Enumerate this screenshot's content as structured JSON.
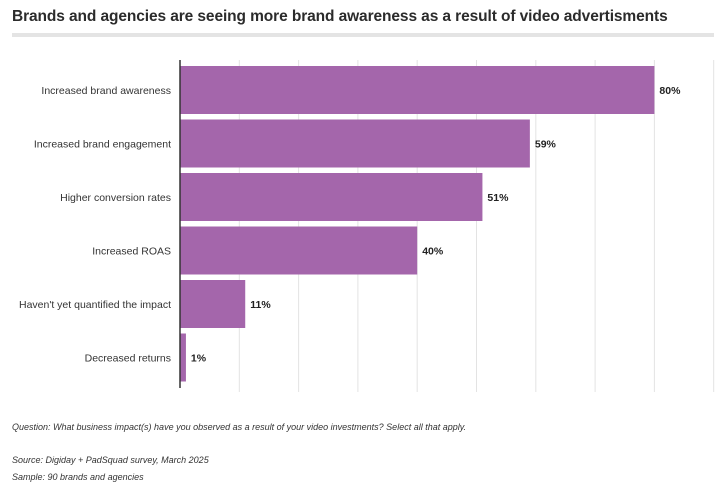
{
  "title": "Brands and agencies are seeing more brand awareness as a result of video advertisments",
  "notes": {
    "question": "Question: What business impact(s) have you observed as a result of your video investments? Select all that apply.",
    "source": "Source: Digiday + PadSquad survey, March 2025",
    "sample": "Sample: 90 brands and agencies"
  },
  "colors": {
    "bar": "#a466ab",
    "grid": "#e3e3e3",
    "axis": "#333333"
  },
  "chart_data": {
    "type": "bar",
    "orientation": "horizontal",
    "categories": [
      "Increased brand awareness",
      "Increased brand engagement",
      "Higher conversion rates",
      "Increased ROAS",
      "Haven't yet quantified the impact",
      "Decreased returns"
    ],
    "values": [
      80,
      59,
      51,
      40,
      11,
      1
    ],
    "value_labels": [
      "80%",
      "59%",
      "51%",
      "40%",
      "11%",
      "1%"
    ],
    "unit": "%",
    "xlim": [
      0,
      90
    ],
    "grid": true
  }
}
